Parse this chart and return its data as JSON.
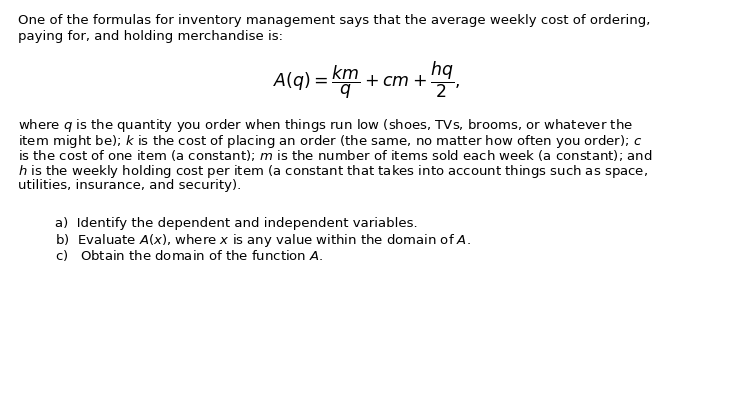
{
  "bg_color": "#ffffff",
  "text_color": "#000000",
  "fig_width": 7.33,
  "fig_height": 4.14,
  "dpi": 100,
  "intro_line1": "One of the formulas for inventory management says that the average weekly cost of ordering,",
  "intro_line2": "paying for, and holding merchandise is:",
  "body_lines": [
    "where $q$ is the quantity you order when things run low (shoes, TVs, brooms, or whatever the",
    "item might be); $k$ is the cost of placing an order (the same, no matter how often you order); $c$",
    "is the cost of one item (a constant); $m$ is the number of items sold each week (a constant); and",
    "$h$ is the weekly holding cost per item (a constant that takes into account things such as space,",
    "utilities, insurance, and security)."
  ],
  "item_a": "a)  Identify the dependent and independent variables.",
  "item_b": "b)  Evaluate $A(x)$, where $x$ is any value within the domain of $A$.",
  "item_c": "c)   Obtain the domain of the function $A$."
}
